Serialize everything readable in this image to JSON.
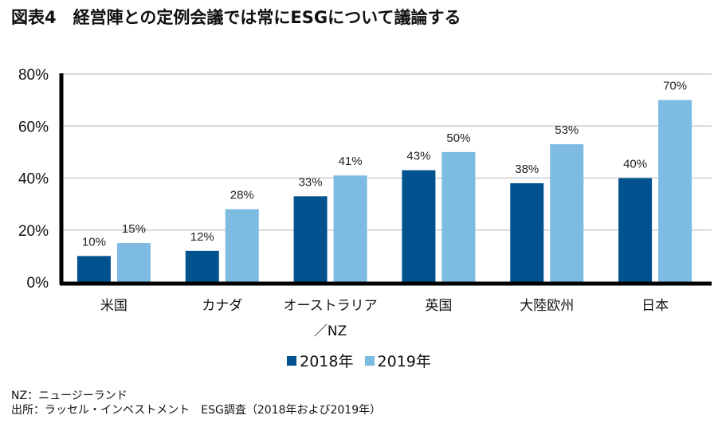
{
  "title": "図表4　経営陣との定例会議では常にESGについて議論する",
  "chart_data": {
    "type": "bar",
    "title": "図表4　経営陣との定例会議では常にESGについて議論する",
    "xlabel": "",
    "ylabel": "",
    "categories": [
      "米国",
      "カナダ",
      "オーストラリア\n／NZ",
      "英国",
      "大陸欧州",
      "日本"
    ],
    "category_lines": [
      [
        "米国"
      ],
      [
        "カナダ"
      ],
      [
        "オーストラリア",
        "／NZ"
      ],
      [
        "英国"
      ],
      [
        "大陸欧州"
      ],
      [
        "日本"
      ]
    ],
    "series": [
      {
        "name": "2018年",
        "color": "#02528f",
        "values": [
          10,
          12,
          33,
          43,
          38,
          40
        ]
      },
      {
        "name": "2019年",
        "color": "#7dbbe3",
        "values": [
          15,
          28,
          41,
          50,
          53,
          70
        ]
      }
    ],
    "ylim": [
      0,
      80
    ],
    "yticks": [
      0,
      20,
      40,
      60,
      80
    ],
    "ytick_labels": [
      "0%",
      "20%",
      "40%",
      "60%",
      "80%"
    ],
    "value_suffix": "%",
    "grid": true,
    "grid_color": "#d9d9d9",
    "legend_position": "bottom-center"
  },
  "legend": [
    {
      "label": "2018年",
      "color": "#02528f"
    },
    {
      "label": "2019年",
      "color": "#7dbbe3"
    }
  ],
  "notes": {
    "line1": "NZ：ニュージーランド",
    "line2": "出所：ラッセル・インベストメント　ESG調査（2018年および2019年）"
  }
}
